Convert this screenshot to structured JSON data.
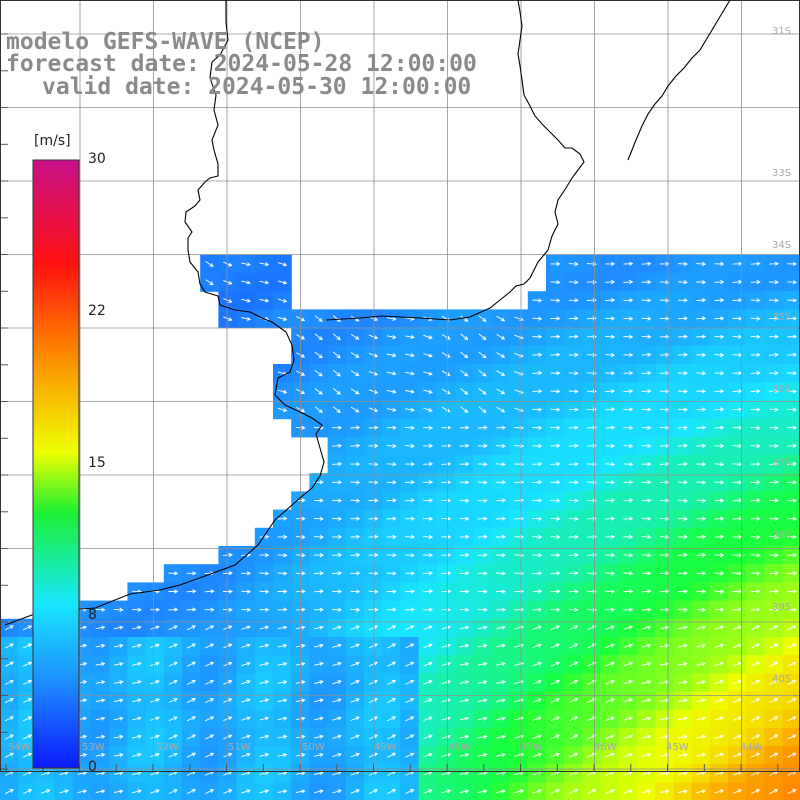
{
  "header": {
    "line1": "modelo GEFS-WAVE (NCEP)",
    "line2": "forecast date: 2024-05-28 12:00:00",
    "line3": "valid date: 2024-05-30 12:00:00"
  },
  "colorbar": {
    "unit": "[m/s]",
    "ticks": [
      "30",
      "22",
      "15",
      "8",
      "0"
    ],
    "stops": [
      "#0a1aff",
      "#1e8cff",
      "#18e6ff",
      "#19ff3a",
      "#f0ff00",
      "#ff8a00",
      "#ff1010",
      "#d0107a"
    ]
  },
  "axis_labels": {
    "lat": [
      "31S",
      "33S",
      "34S",
      "35S",
      "36S",
      "37S",
      "38S",
      "39S",
      "40S"
    ],
    "lon": [
      "54W",
      "53W",
      "52W",
      "51W",
      "50W",
      "49W",
      "48W",
      "47W",
      "46W",
      "45W",
      "44W"
    ]
  },
  "colors": {
    "land": "#ffffff",
    "grid": "#8f8f8f",
    "coast": "#000000",
    "arrow": "#ffffff"
  }
}
